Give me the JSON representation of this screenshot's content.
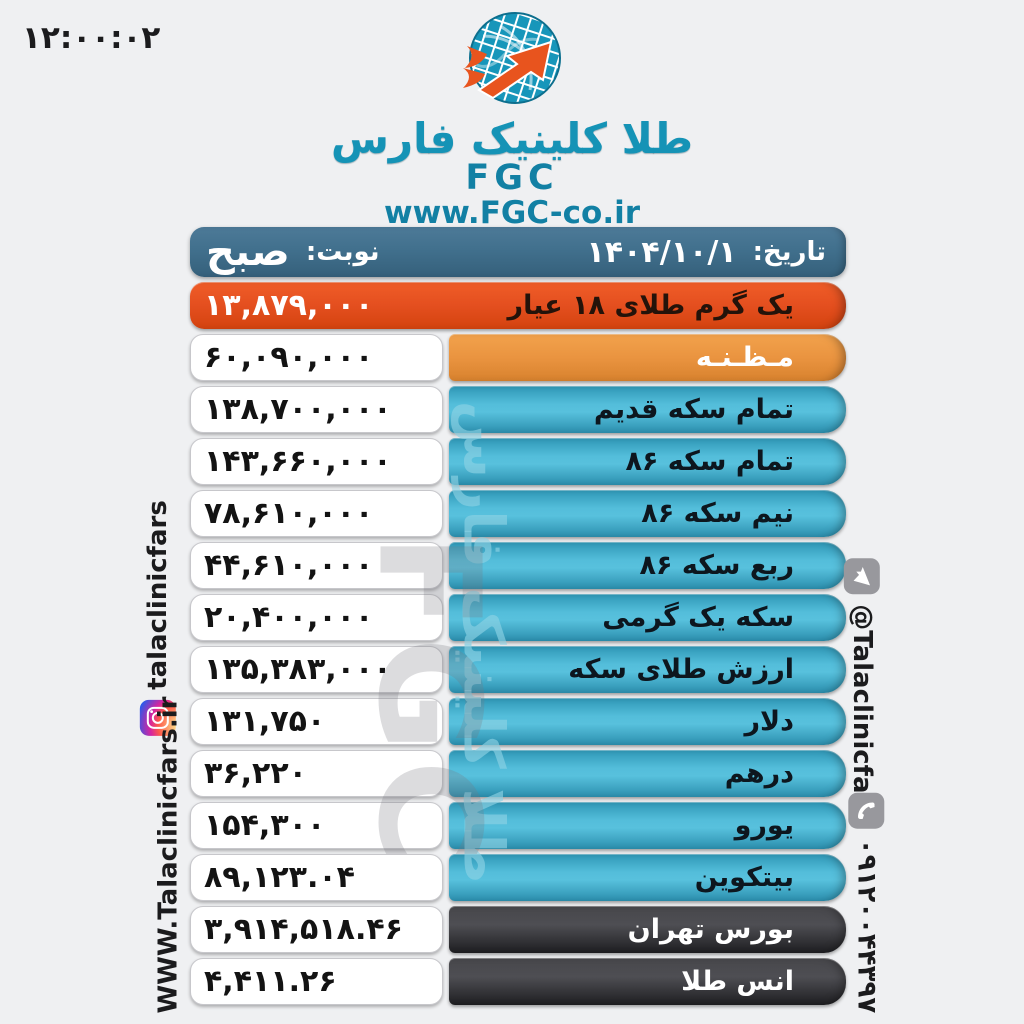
{
  "time": "۱۲:۰۰:۰۲",
  "logo": {
    "brand_fa": "طلا کلینیک فارس",
    "brand_en": "FGC",
    "website": "www.FGC-co.ir"
  },
  "header": {
    "date_label": "تاریخ:",
    "date_value": "۱۴۰۴/۱۰/۱",
    "shift_label": "نوبت:",
    "shift_value": "صبح"
  },
  "rows": [
    {
      "label": "یک گرم طلای ۱۸ عیار",
      "value": "۱۳,۸۷۹,۰۰۰",
      "style": "red"
    },
    {
      "label": "مـظـنـه",
      "value": "۶۰,۰۹۰,۰۰۰",
      "style": "orange"
    },
    {
      "label": "تمام سکه قدیم",
      "value": "۱۳۸,۷۰۰,۰۰۰",
      "style": "teal"
    },
    {
      "label": "تمام سکه ۸۶",
      "value": "۱۴۳,۶۶۰,۰۰۰",
      "style": "teal"
    },
    {
      "label": "نیم سکه ۸۶",
      "value": "۷۸,۶۱۰,۰۰۰",
      "style": "teal"
    },
    {
      "label": "ربع سکه ۸۶",
      "value": "۴۴,۶۱۰,۰۰۰",
      "style": "teal"
    },
    {
      "label": "سکه یک گرمی",
      "value": "۲۰,۴۰۰,۰۰۰",
      "style": "teal"
    },
    {
      "label": "ارزش طلای سکه",
      "value": "۱۳۵,۳۸۳,۰۰۰",
      "style": "teal"
    },
    {
      "label": "دلار",
      "value": "۱۳۱,۷۵۰",
      "style": "teal"
    },
    {
      "label": "درهم",
      "value": "۳۶,۲۲۰",
      "style": "teal"
    },
    {
      "label": "یورو",
      "value": "۱۵۴,۳۰۰",
      "style": "teal"
    },
    {
      "label": "بیتکوین",
      "value": "۸۹,۱۲۳.۰۴",
      "style": "teal"
    },
    {
      "label": "بورس تهران",
      "value": "۳,۹۱۴,۵۱۸.۴۶",
      "style": "dark"
    },
    {
      "label": "انس طلا",
      "value": "۴,۴۱۱.۲۶",
      "style": "dark"
    }
  ],
  "watermark": {
    "fa": "طلا کلینیک فارس",
    "en": "FGC"
  },
  "social": {
    "instagram_handle": "talaclinicfars",
    "website_vertical": "WWW.Talaclinicfars.ir",
    "telegram_handle": "@Talaclinicfars",
    "phone_number": "۰۹۱۲۰۰۴۴۳۹۷"
  },
  "colors": {
    "header": "#41708d",
    "red_row": "#e44f1f",
    "orange_row": "#ea9440",
    "teal_row": "#3aa6c4",
    "dark_row": "#343438",
    "brand_teal": "#1593b6",
    "background": "#eff0f2"
  }
}
